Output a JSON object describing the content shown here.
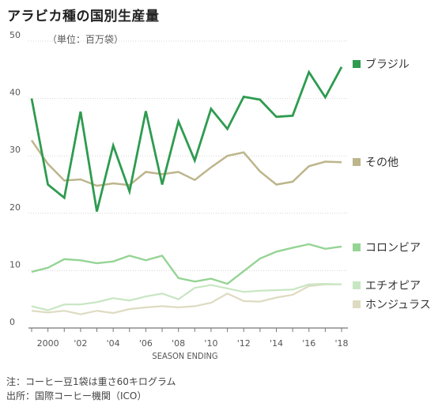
{
  "title": "アラビカ種の国別生産量",
  "note": "注：コーヒー豆1袋は重さ60キログラム",
  "source": "出所：国際コーヒー機関（ICO）",
  "chart_data": {
    "type": "line",
    "xlabel": "SEASON ENDING",
    "ylabel": "（単位：百万袋）",
    "ylim": [
      0,
      50
    ],
    "xlim": [
      1999,
      2018
    ],
    "yticks": [
      {
        "value": 0,
        "label": "0"
      },
      {
        "value": 10,
        "label": "10"
      },
      {
        "value": 20,
        "label": "20"
      },
      {
        "value": 30,
        "label": "30"
      },
      {
        "value": 40,
        "label": "40"
      },
      {
        "value": 50,
        "label": "50"
      }
    ],
    "xticks": [
      {
        "value": 2000,
        "label": "2000"
      },
      {
        "value": 2002,
        "label": "'02"
      },
      {
        "value": 2004,
        "label": "'04"
      },
      {
        "value": 2006,
        "label": "'06"
      },
      {
        "value": 2008,
        "label": "'08"
      },
      {
        "value": 2010,
        "label": "'10"
      },
      {
        "value": 2012,
        "label": "'12"
      },
      {
        "value": 2014,
        "label": "'14"
      },
      {
        "value": 2016,
        "label": "'16"
      },
      {
        "value": 2018,
        "label": "'18"
      }
    ],
    "grid": true,
    "x": [
      1999,
      2000,
      2001,
      2002,
      2003,
      2004,
      2005,
      2006,
      2007,
      2008,
      2009,
      2010,
      2011,
      2012,
      2013,
      2014,
      2015,
      2016,
      2017,
      2018
    ],
    "series": [
      {
        "name": "ブラジル",
        "color": "#2e9b4f",
        "width": 2.8,
        "values": [
          40.0,
          25.0,
          22.7,
          37.7,
          20.3,
          31.8,
          23.8,
          37.8,
          25.0,
          36.0,
          29.2,
          38.2,
          34.7,
          40.3,
          39.8,
          36.8,
          37.0,
          44.6,
          40.2,
          45.5
        ]
      },
      {
        "name": "その他",
        "color": "#bdb58c",
        "width": 2.5,
        "values": [
          32.7,
          28.6,
          25.7,
          25.9,
          24.8,
          25.2,
          24.9,
          27.2,
          26.8,
          27.2,
          25.8,
          28.0,
          30.0,
          30.6,
          27.3,
          25.0,
          25.5,
          28.2,
          29.0,
          28.9
        ]
      },
      {
        "name": "コロンビア",
        "color": "#95d494",
        "width": 2.4,
        "values": [
          9.8,
          10.5,
          12.0,
          11.8,
          11.3,
          11.6,
          12.6,
          11.8,
          12.6,
          8.7,
          8.1,
          8.6,
          7.7,
          9.9,
          12.1,
          13.3,
          14.0,
          14.6,
          13.8,
          14.2
        ]
      },
      {
        "name": "エチオピア",
        "color": "#c7e6c2",
        "width": 2.2,
        "values": [
          3.8,
          3.1,
          4.1,
          4.1,
          4.5,
          5.2,
          4.8,
          5.5,
          6.0,
          5.0,
          7.0,
          7.5,
          6.9,
          6.3,
          6.5,
          6.6,
          6.7,
          7.6,
          7.7,
          7.6
        ]
      },
      {
        "name": "ホンジュラス",
        "color": "#dedbc2",
        "width": 2.2,
        "values": [
          3.0,
          2.7,
          3.0,
          2.4,
          3.0,
          2.6,
          3.3,
          3.6,
          3.8,
          3.6,
          3.8,
          4.4,
          6.0,
          4.7,
          4.6,
          5.3,
          5.8,
          7.3,
          7.6,
          7.6
        ]
      }
    ],
    "legend_position": "right"
  }
}
